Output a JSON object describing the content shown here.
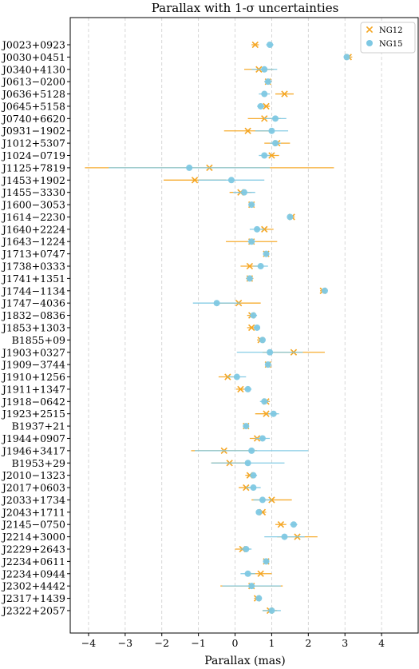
{
  "chart_data": {
    "type": "scatter",
    "title": "Parallax with 1-σ uncertainties",
    "xlabel": "Parallax (mas)",
    "ylabel": "",
    "xlim": [
      -4.5,
      5.0
    ],
    "xticks": [
      -4,
      -3,
      -2,
      -1,
      0,
      1,
      2,
      3,
      4
    ],
    "grid": "x",
    "legend_position": "top-right",
    "categories": [
      "J0023+0923",
      "J0030+0451",
      "J0340+4130",
      "J0613−0200",
      "J0636+5128",
      "J0645+5158",
      "J0740+6620",
      "J0931−1902",
      "J1012+5307",
      "J1024−0719",
      "J1125+7819",
      "J1453+1902",
      "J1455−3330",
      "J1600−3053",
      "J1614−2230",
      "J1640+2224",
      "J1643−1224",
      "J1713+0747",
      "J1738+0333",
      "J1741+1351",
      "J1744−1134",
      "J1747−4036",
      "J1832−0836",
      "J1853+1303",
      "B1855+09",
      "J1903+0327",
      "J1909−3744",
      "J1910+1256",
      "J1911+1347",
      "J1918−0642",
      "J1923+2515",
      "B1937+21",
      "J1944+0907",
      "J1946+3417",
      "B1953+29",
      "J2010−1323",
      "J2017+0603",
      "J2033+1734",
      "J2043+1711",
      "J2145−0750",
      "J2214+3000",
      "J2229+2643",
      "J2234+0611",
      "J2234+0944",
      "J2302+4442",
      "J2317+1439",
      "J2322+2057"
    ],
    "series": [
      {
        "name": "NG12",
        "color": "#f5a623",
        "marker": "x",
        "values": [
          0.55,
          3.1,
          0.65,
          0.9,
          1.35,
          0.85,
          0.8,
          0.35,
          1.15,
          1.0,
          -0.7,
          -1.1,
          0.15,
          0.45,
          1.55,
          0.8,
          0.45,
          0.85,
          0.4,
          0.4,
          2.4,
          0.1,
          0.45,
          0.45,
          0.7,
          1.6,
          0.9,
          -0.2,
          0.15,
          0.85,
          0.85,
          0.3,
          0.6,
          -0.3,
          -0.15,
          0.4,
          0.3,
          1.0,
          0.75,
          1.25,
          1.7,
          0.2,
          0.85,
          0.7,
          0.45,
          0.6,
          0.95
        ],
        "errors": [
          0.1,
          0.1,
          0.4,
          0.1,
          0.25,
          0.1,
          0.45,
          0.65,
          0.35,
          0.2,
          3.4,
          0.85,
          0.3,
          0.08,
          0.08,
          0.25,
          0.7,
          0.03,
          0.25,
          0.1,
          0.08,
          0.6,
          0.12,
          0.12,
          0.1,
          0.85,
          0.03,
          0.25,
          0.12,
          0.1,
          0.3,
          0.08,
          0.2,
          0.9,
          0.5,
          0.12,
          0.2,
          0.55,
          0.1,
          0.15,
          0.55,
          0.2,
          0.08,
          0.3,
          0.85,
          0.08,
          0.2
        ]
      },
      {
        "name": "NG15",
        "color": "#7ec8e3",
        "marker": "o",
        "values": [
          0.95,
          3.05,
          0.8,
          0.9,
          0.8,
          0.7,
          1.1,
          1.0,
          1.1,
          0.8,
          -1.25,
          -0.1,
          0.25,
          0.45,
          1.5,
          0.6,
          0.45,
          0.85,
          0.7,
          0.4,
          2.45,
          -0.5,
          0.5,
          0.6,
          0.75,
          0.95,
          0.9,
          0.05,
          0.35,
          0.8,
          1.05,
          0.3,
          0.75,
          0.45,
          0.35,
          0.5,
          0.5,
          0.75,
          0.65,
          1.6,
          1.35,
          0.3,
          0.85,
          0.35,
          0.45,
          0.65,
          1.0
        ],
        "errors": [
          0.1,
          0.08,
          0.35,
          0.1,
          0.15,
          0.1,
          0.3,
          0.45,
          0.15,
          0.15,
          2.2,
          0.9,
          0.3,
          0.05,
          0.05,
          0.2,
          0.1,
          0.03,
          0.2,
          0.08,
          0.05,
          0.65,
          0.1,
          0.08,
          0.08,
          0.9,
          0.03,
          0.25,
          0.1,
          0.12,
          0.15,
          0.08,
          0.2,
          1.55,
          1.0,
          0.1,
          0.2,
          0.25,
          0.08,
          0.1,
          0.55,
          0.15,
          0.08,
          0.2,
          0.8,
          0.08,
          0.25
        ]
      }
    ]
  }
}
